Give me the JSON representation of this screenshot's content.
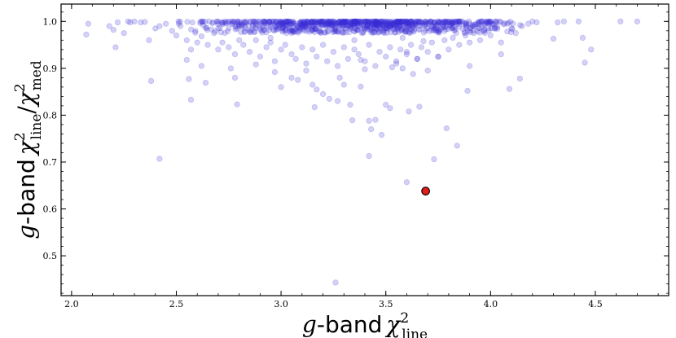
{
  "chart_data": {
    "type": "scatter",
    "title": "",
    "xlabel": {
      "g": "g",
      "band": "-band",
      "chi": "χ",
      "sup": "2",
      "sub": "line"
    },
    "ylabel": {
      "g": "g",
      "band": "-band",
      "chi": "χ",
      "sup1": "2",
      "sub1": "line",
      "slash": "/",
      "chi2": "χ",
      "sup2": "2",
      "sub2": "med"
    },
    "xlim": [
      1.95,
      4.85
    ],
    "ylim": [
      0.415,
      1.037
    ],
    "xticks": [
      2.0,
      2.5,
      3.0,
      3.5,
      4.0,
      4.5
    ],
    "xtick_labels": [
      "2.0",
      "2.5",
      "3.0",
      "3.5",
      "4.0",
      "4.5"
    ],
    "yticks": [
      0.5,
      0.6,
      0.7,
      0.8,
      0.9,
      1.0
    ],
    "ytick_labels": [
      "0.5",
      "0.6",
      "0.7",
      "0.8",
      "0.9",
      "1.0"
    ],
    "grid": false,
    "colors": {
      "points": "#3b2fd6",
      "highlight": "#e21b1b",
      "axes": "#000000"
    },
    "dense_band": {
      "x_range": [
        2.5,
        4.2
      ],
      "y_range": [
        0.975,
        1.0
      ],
      "note_count": 900
    },
    "series": [
      {
        "points": [
          [
            2.07,
            0.972
          ],
          [
            2.08,
            0.995
          ],
          [
            2.18,
            0.99
          ],
          [
            2.2,
            0.982
          ],
          [
            2.21,
            0.945
          ],
          [
            2.22,
            0.998
          ],
          [
            2.25,
            0.975
          ],
          [
            2.27,
            1.0
          ],
          [
            2.28,
            0.998
          ],
          [
            2.3,
            1.0
          ],
          [
            2.33,
            0.998
          ],
          [
            2.35,
            0.999
          ],
          [
            2.37,
            0.96
          ],
          [
            2.4,
            0.985
          ],
          [
            2.42,
            0.99
          ],
          [
            2.45,
            0.995
          ],
          [
            2.48,
            0.98
          ],
          [
            2.5,
            0.97
          ],
          [
            2.52,
            0.99
          ],
          [
            2.55,
            0.96
          ],
          [
            2.57,
            0.94
          ],
          [
            2.6,
            0.955
          ],
          [
            2.62,
            0.968
          ],
          [
            2.65,
            0.95
          ],
          [
            2.68,
            0.975
          ],
          [
            2.7,
            0.985
          ],
          [
            2.72,
            0.955
          ],
          [
            2.75,
            0.945
          ],
          [
            2.78,
            0.93
          ],
          [
            2.8,
            0.96
          ],
          [
            2.82,
            0.95
          ],
          [
            2.85,
            0.935
          ],
          [
            2.88,
            0.96
          ],
          [
            2.9,
            0.925
          ],
          [
            2.93,
            0.945
          ],
          [
            2.95,
            0.955
          ],
          [
            2.97,
            0.915
          ],
          [
            3.0,
            0.94
          ],
          [
            3.02,
            0.95
          ],
          [
            3.05,
            0.93
          ],
          [
            3.07,
            0.92
          ],
          [
            3.1,
            0.945
          ],
          [
            3.12,
            0.91
          ],
          [
            3.15,
            0.94
          ],
          [
            3.17,
            0.925
          ],
          [
            3.2,
            0.95
          ],
          [
            3.22,
            0.915
          ],
          [
            3.25,
            0.935
          ],
          [
            3.27,
            0.905
          ],
          [
            3.3,
            0.945
          ],
          [
            3.32,
            0.92
          ],
          [
            3.35,
            0.94
          ],
          [
            3.37,
            0.93
          ],
          [
            3.4,
            0.915
          ],
          [
            3.42,
            0.95
          ],
          [
            3.45,
            0.905
          ],
          [
            3.47,
            0.935
          ],
          [
            3.5,
            0.925
          ],
          [
            3.52,
            0.945
          ],
          [
            3.55,
            0.91
          ],
          [
            3.57,
            0.94
          ],
          [
            3.6,
            0.93
          ],
          [
            3.62,
            0.95
          ],
          [
            3.65,
            0.92
          ],
          [
            3.67,
            0.945
          ],
          [
            3.7,
            0.935
          ],
          [
            3.72,
            0.955
          ],
          [
            3.75,
            0.925
          ],
          [
            3.78,
            0.96
          ],
          [
            3.8,
            0.94
          ],
          [
            3.82,
            0.965
          ],
          [
            3.85,
            0.95
          ],
          [
            3.88,
            0.97
          ],
          [
            3.9,
            0.955
          ],
          [
            3.92,
            0.975
          ],
          [
            3.95,
            0.96
          ],
          [
            3.97,
            0.98
          ],
          [
            4.0,
            0.97
          ],
          [
            4.02,
            0.985
          ],
          [
            4.05,
            0.955
          ],
          [
            4.08,
            0.995
          ],
          [
            4.1,
            0.985
          ],
          [
            4.12,
            0.975
          ],
          [
            4.15,
            0.99
          ],
          [
            4.18,
            0.995
          ],
          [
            4.2,
            1.0
          ],
          [
            4.22,
            0.998
          ],
          [
            4.3,
            0.963
          ],
          [
            4.32,
            0.998
          ],
          [
            4.35,
            1.0
          ],
          [
            4.42,
            1.0
          ],
          [
            4.44,
            0.965
          ],
          [
            4.48,
            0.94
          ],
          [
            4.62,
            1.0
          ],
          [
            4.7,
            1.0
          ],
          [
            2.38,
            0.873
          ],
          [
            2.56,
            0.877
          ],
          [
            2.57,
            0.833
          ],
          [
            2.64,
            0.869
          ],
          [
            2.78,
            0.88
          ],
          [
            2.79,
            0.823
          ],
          [
            2.42,
            0.707
          ],
          [
            2.76,
            0.9
          ],
          [
            2.88,
            0.908
          ],
          [
            2.97,
            0.892
          ],
          [
            3.0,
            0.86
          ],
          [
            3.05,
            0.88
          ],
          [
            3.08,
            0.875
          ],
          [
            3.12,
            0.895
          ],
          [
            3.15,
            0.865
          ],
          [
            3.17,
            0.855
          ],
          [
            3.2,
            0.845
          ],
          [
            3.16,
            0.817
          ],
          [
            3.23,
            0.835
          ],
          [
            3.27,
            0.83
          ],
          [
            3.28,
            0.88
          ],
          [
            3.3,
            0.865
          ],
          [
            3.33,
            0.822
          ],
          [
            3.34,
            0.789
          ],
          [
            3.38,
            0.918
          ],
          [
            3.4,
            0.898
          ],
          [
            3.42,
            0.788
          ],
          [
            3.43,
            0.77
          ],
          [
            3.45,
            0.79
          ],
          [
            3.48,
            0.758
          ],
          [
            3.5,
            0.822
          ],
          [
            3.52,
            0.815
          ],
          [
            3.53,
            0.902
          ],
          [
            3.38,
            0.861
          ],
          [
            3.42,
            0.713
          ],
          [
            3.55,
            0.915
          ],
          [
            3.58,
            0.9
          ],
          [
            3.6,
            0.935
          ],
          [
            3.61,
            0.808
          ],
          [
            3.63,
            0.888
          ],
          [
            3.65,
            0.92
          ],
          [
            3.66,
            0.818
          ],
          [
            3.7,
            0.895
          ],
          [
            3.73,
            0.706
          ],
          [
            3.75,
            0.925
          ],
          [
            3.79,
            0.772
          ],
          [
            3.84,
            0.735
          ],
          [
            3.89,
            0.852
          ],
          [
            4.09,
            0.856
          ],
          [
            4.14,
            0.878
          ],
          [
            4.45,
            0.912
          ],
          [
            3.6,
            0.657
          ],
          [
            3.26,
            0.443
          ],
          [
            2.55,
            0.918
          ],
          [
            2.62,
            0.905
          ],
          [
            2.7,
            0.94
          ],
          [
            2.95,
            0.965
          ],
          [
            3.35,
            0.96
          ],
          [
            3.58,
            0.965
          ],
          [
            3.68,
            0.958
          ],
          [
            3.9,
            0.905
          ],
          [
            4.05,
            0.93
          ]
        ]
      }
    ],
    "highlight": {
      "x": 3.69,
      "y": 0.638
    }
  }
}
